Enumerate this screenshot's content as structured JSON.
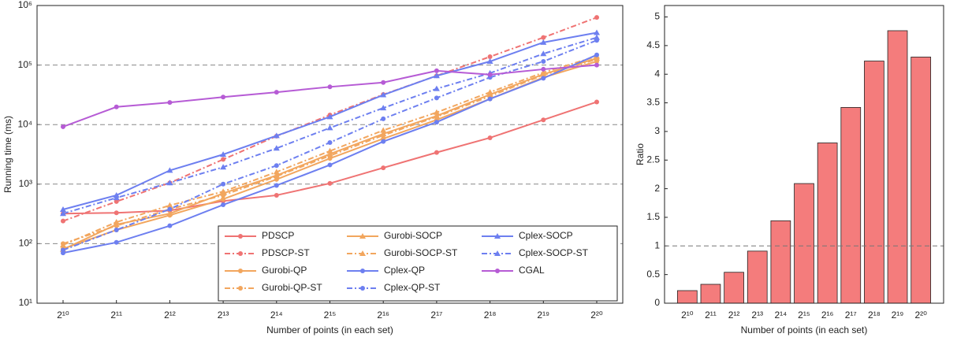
{
  "chart_data": [
    {
      "type": "line",
      "x_label": "Number of points (in each set)",
      "y_label": "Running time (ms)",
      "yscale": "log",
      "grid": true,
      "legend": "lower right",
      "categories": [
        "2¹⁰",
        "2¹¹",
        "2¹²",
        "2¹³",
        "2¹⁴",
        "2¹⁵",
        "2¹⁶",
        "2¹⁷",
        "2¹⁸",
        "2¹⁹",
        "2²⁰"
      ],
      "ylim": [
        10,
        1000000
      ],
      "yticks": [
        {
          "value": 10,
          "label": "10¹"
        },
        {
          "value": 100,
          "label": "10²"
        },
        {
          "value": 1000,
          "label": "10³"
        },
        {
          "value": 10000,
          "label": "10⁴"
        },
        {
          "value": 100000,
          "label": "10⁵"
        },
        {
          "value": 1000000,
          "label": "10⁶"
        }
      ],
      "series": [
        {
          "name": "PDSCP",
          "color": "#ef7373",
          "dash": false,
          "marker": "circle",
          "values": [
            320,
            330,
            360,
            520,
            650,
            1030,
            1880,
            3400,
            6000,
            12000,
            24000
          ]
        },
        {
          "name": "PDSCP-ST",
          "color": "#ef7373",
          "dash": true,
          "marker": "circle",
          "values": [
            240,
            510,
            1050,
            2600,
            6400,
            14500,
            32000,
            66000,
            138000,
            290000,
            630000
          ]
        },
        {
          "name": "Gurobi-QP",
          "color": "#f2a65e",
          "dash": false,
          "marker": "circle",
          "values": [
            82,
            170,
            300,
            560,
            1200,
            2700,
            5800,
            12000,
            27000,
            62000,
            115000
          ]
        },
        {
          "name": "Gurobi-QP-ST",
          "color": "#f2a65e",
          "dash": true,
          "marker": "circle",
          "values": [
            100,
            200,
            380,
            650,
            1350,
            3000,
            6600,
            13500,
            30000,
            68000,
            125000
          ]
        },
        {
          "name": "Gurobi-SOCP",
          "color": "#f2a65e",
          "dash": false,
          "marker": "triangle",
          "values": [
            80,
            210,
            320,
            700,
            1400,
            3200,
            7000,
            14000,
            32000,
            70000,
            130000
          ]
        },
        {
          "name": "Gurobi-SOCP-ST",
          "color": "#f2a65e",
          "dash": true,
          "marker": "triangle",
          "values": [
            95,
            230,
            440,
            750,
            1600,
            3600,
            8000,
            16000,
            35000,
            75000,
            140000
          ]
        },
        {
          "name": "Cplex-QP",
          "color": "#6d7ff0",
          "dash": false,
          "marker": "circle",
          "values": [
            70,
            105,
            200,
            450,
            950,
            2100,
            5200,
            11000,
            27000,
            60000,
            148000
          ]
        },
        {
          "name": "Cplex-QP-ST",
          "color": "#6d7ff0",
          "dash": true,
          "marker": "circle",
          "values": [
            78,
            170,
            380,
            1000,
            2050,
            5000,
            12500,
            28000,
            62000,
            115000,
            260000
          ]
        },
        {
          "name": "Cplex-SOCP",
          "color": "#6d7ff0",
          "dash": false,
          "marker": "triangle",
          "values": [
            375,
            650,
            1700,
            3150,
            6500,
            13500,
            31500,
            66000,
            115000,
            240000,
            350000
          ]
        },
        {
          "name": "Cplex-SOCP-ST",
          "color": "#6d7ff0",
          "dash": true,
          "marker": "triangle",
          "values": [
            320,
            590,
            1050,
            1930,
            4000,
            8800,
            19000,
            40000,
            73000,
            155000,
            290000
          ]
        },
        {
          "name": "CGAL",
          "color": "#b65bd5",
          "dash": false,
          "marker": "circle",
          "values": [
            9200,
            19800,
            23500,
            29000,
            35000,
            43000,
            51000,
            80000,
            69000,
            85000,
            100000
          ]
        }
      ]
    },
    {
      "type": "bar",
      "x_label": "Number of points (in each set)",
      "y_label": "Ratio",
      "color": "#f47c7c",
      "hline": 1,
      "categories": [
        "2¹⁰",
        "2¹¹",
        "2¹²",
        "2¹³",
        "2¹⁴",
        "2¹⁵",
        "2¹⁶",
        "2¹⁷",
        "2¹⁸",
        "2¹⁹",
        "2²⁰"
      ],
      "values": [
        0.22,
        0.33,
        0.54,
        0.91,
        1.44,
        2.09,
        2.8,
        3.42,
        4.23,
        4.76,
        4.3
      ],
      "ylim": [
        0,
        5.2
      ],
      "yticks": [
        0,
        0.5,
        1,
        1.5,
        2,
        2.5,
        3,
        3.5,
        4,
        4.5,
        5
      ]
    }
  ]
}
